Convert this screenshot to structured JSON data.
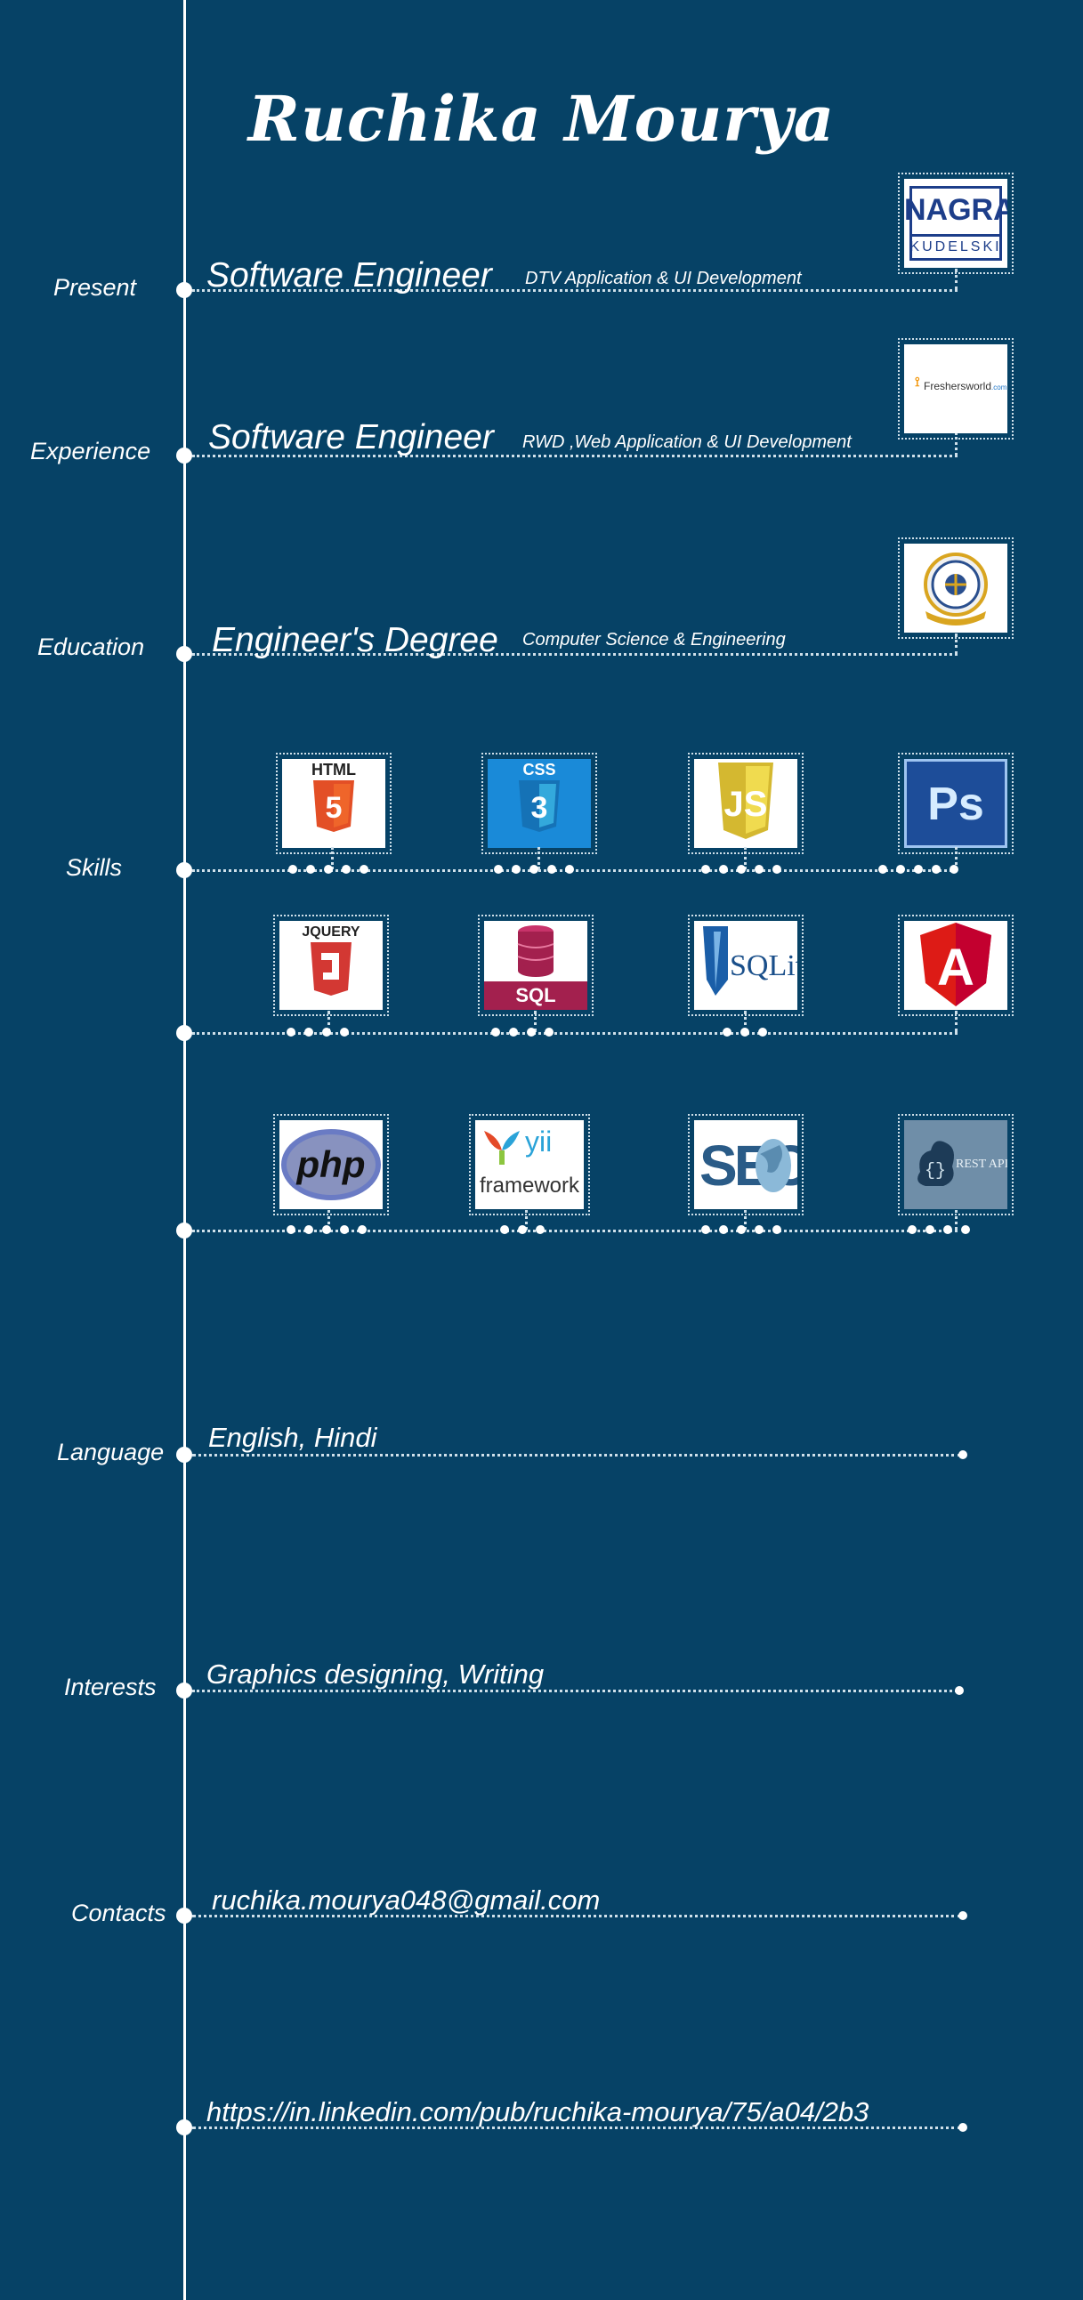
{
  "name": "Ruchika Mourya",
  "rows": {
    "present": {
      "label": "Present",
      "title": "Software Engineer",
      "detail": "DTV  Application & UI Development",
      "logo": {
        "name": "NAGRA",
        "sub": "KUDELSKI"
      }
    },
    "experience": {
      "label": "Experience",
      "title": "Software Engineer",
      "detail": "RWD ,Web Application  & UI Development",
      "logo": {
        "name": "Freshersworld",
        "tld": ".com"
      }
    },
    "education": {
      "label": "Education",
      "title": "Engineer's Degree",
      "detail": "Computer Science & Engineering",
      "logo": {
        "name": "college-seal"
      }
    },
    "skills": {
      "label": "Skills",
      "row1": [
        "HTML",
        "CSS",
        "JS",
        "Ps"
      ],
      "row2": [
        "JQUERY",
        "SQL",
        "SQLite",
        "A"
      ],
      "row3": [
        "php",
        "yii",
        "framework",
        "SEO",
        "REST API"
      ]
    },
    "language": {
      "label": "Language",
      "value": "English, Hindi"
    },
    "interests": {
      "label": "Interests",
      "value": "Graphics designing, Writing"
    },
    "contacts": {
      "label": "Contacts",
      "email": "ruchika.mourya048@gmail.com",
      "linkedin": "https://in.linkedin.com/pub/ruchika-mourya/75/a04/2b3"
    }
  },
  "colors": {
    "background": "#064266",
    "html5": "#e34f26",
    "css3": "#1572b6",
    "js": "#f0db4f",
    "photoshop": "#1d4d99",
    "jquery": "#d33833",
    "sql": "#a3204e",
    "angular": "#dd1b16"
  }
}
